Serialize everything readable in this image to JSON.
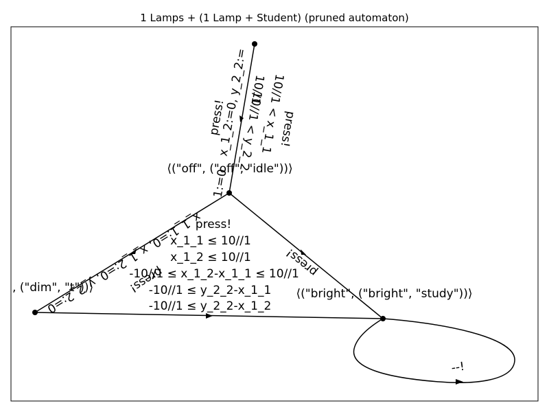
{
  "title": "1 Lamps + (1 Lamp + Student) (pruned automaton)",
  "states": {
    "off": "⟨(\"off\", (\"off\", \"idle\"))⟩",
    "dim": ", (\"dim\", \"t\"))⟩",
    "bright": "⟨(\"bright\", (\"bright\", \"study\"))⟩"
  },
  "edges": {
    "top_press": "press!",
    "top_reset": "x_1_2:=0, y_2_2:=",
    "top_reset_b": "1:=0",
    "top_guard_1": "10//1",
    "top_guard_2": "10//1 < y_2_2",
    "top_guard_3": "10//1 < x_1_1",
    "top_guard_4": "press!",
    "top_guard_5": "10//1 < x_1_",
    "off_dim_reset": "x_1_1:=0, x_1_2:=0, y_2_2:=0",
    "off_dim_press": "press!",
    "off_dim_guard": "10//1 ≤ y_2_2",
    "bright_off_press": "press!",
    "bright_self_label": "--!",
    "guard_press": "press!",
    "guard_1": "x_1_1 ≤ 10//1",
    "guard_2": "x_1_2 ≤ 10//1",
    "guard_3": "-10//1 ≤ x_1_2-x_1_1 ≤ 10//1",
    "guard_4": "-10//1 ≤ y_2_2-x_1_1",
    "guard_5": "-10//1 ≤ y_2_2-x_1_2"
  }
}
